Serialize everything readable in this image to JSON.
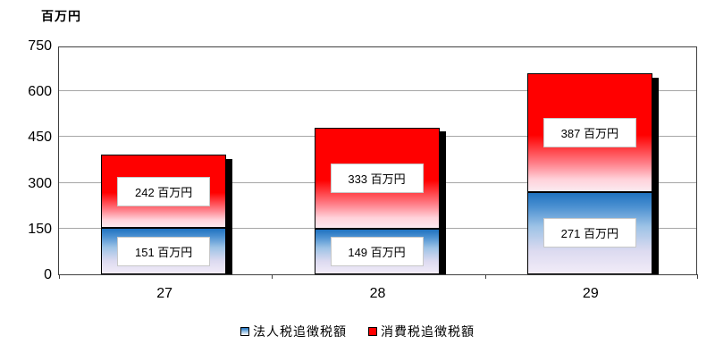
{
  "chart_data": {
    "type": "bar",
    "stacked": true,
    "title": "",
    "unit_label": "百万円",
    "categories": [
      "27",
      "28",
      "29"
    ],
    "series": [
      {
        "name": "法人税追徴税額",
        "color": "#1f72c0",
        "values": [
          151,
          149,
          271
        ],
        "data_labels": [
          "151 百万円",
          "149 百万円",
          "271 百万円"
        ]
      },
      {
        "name": "消費税追徴税額",
        "color": "#ff0000",
        "values": [
          242,
          333,
          387
        ],
        "data_labels": [
          "242 百万円",
          "333 百万円",
          "387 百万円"
        ]
      }
    ],
    "ylim": [
      0,
      750
    ],
    "yticks": [
      0,
      150,
      300,
      450,
      600,
      750
    ],
    "ytick_labels": [
      "0",
      "150",
      "300",
      "450",
      "600",
      "750"
    ],
    "grid": true,
    "grid_color": "#a6a6a6",
    "axis_border_color": "#404040",
    "legend_position": "bottom"
  }
}
